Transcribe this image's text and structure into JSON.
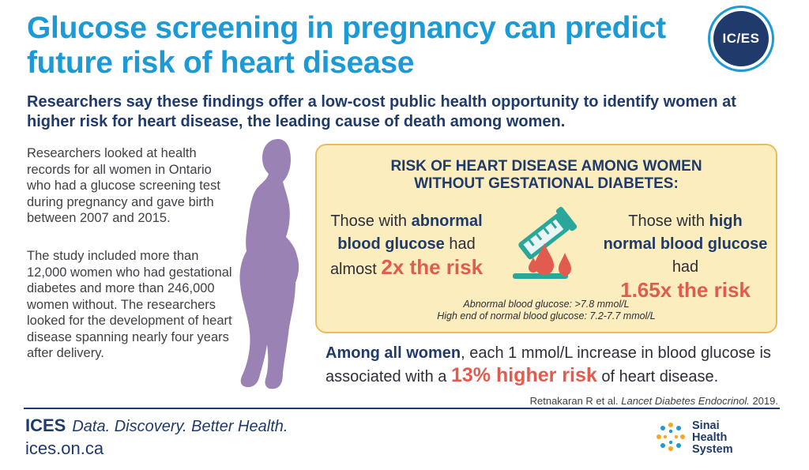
{
  "title": "Glucose screening in pregnancy can predict future risk of heart disease",
  "logo_text": "IC/ES",
  "subtitle": "Researchers say these findings offer a low-cost public health opportunity to identify women at higher risk for heart disease, the leading cause of death among women.",
  "intro": {
    "paragraph1": "Researchers looked at health records for all women in Ontario who had a glucose screening test during pregnancy and gave birth between 2007 and 2015.",
    "paragraph2": "The study included more than 12,000 women who had gestational diabetes and more than 246,000 women without. The researchers looked for the development of heart disease spanning nearly four years after delivery."
  },
  "risk_box": {
    "heading_line1": "RISK OF HEART DISEASE AMONG WOMEN",
    "heading_line2": "WITHOUT GESTATIONAL DIABETES:",
    "left": {
      "pre": "Those with ",
      "bold": "abnormal blood glucose",
      "post": " had almost ",
      "risk": "2x the risk"
    },
    "right": {
      "pre": "Those with ",
      "bold": "high normal blood glucose",
      "post": " had",
      "risk": "1.65x the risk"
    },
    "footnote1": "Abnormal blood glucose: >7.8 mmol/L",
    "footnote2": "High end of normal blood glucose: 7.2-7.7 mmol/L",
    "icon": "test-tube-blood-drops-icon"
  },
  "summary": {
    "bold": "Among all women",
    "text1": ", each 1 mmol/L increase in blood glucose is associated with a ",
    "risk": "13% higher risk",
    "text2": " of heart disease."
  },
  "citation": {
    "authors": "Retnakaran R et al. ",
    "journal": "Lancet Diabetes Endocrinol.",
    "year": " 2019."
  },
  "footer": {
    "brand": "ICES",
    "tagline": "Data. Discovery. Better Health.",
    "url": "ices.on.ca"
  },
  "partner": {
    "line1": "Sinai",
    "line2": "Health",
    "line3": "System"
  },
  "colors": {
    "title_blue": "#1b9ad6",
    "navy": "#1f3a6b",
    "risk_red": "#e15b4f",
    "box_fill": "#fbedbd",
    "silhouette": "#9a82b4"
  }
}
